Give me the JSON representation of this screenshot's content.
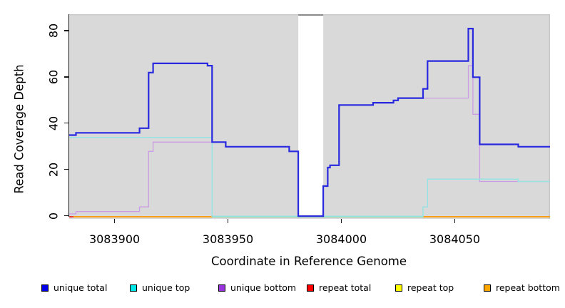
{
  "figure": {
    "ylabel": "Read Coverage Depth",
    "xlabel": "Coordinate in Reference Genome",
    "ytick_values": [
      0,
      20,
      40,
      60,
      80
    ],
    "ytick_labels": [
      "0",
      "20",
      "40",
      "60",
      "80"
    ],
    "xtick_values": [
      3083900,
      3083950,
      3084000,
      3084050
    ],
    "xtick_labels": [
      "3083900",
      "3083950",
      "3084000",
      "3084050"
    ]
  },
  "legend": {
    "items": [
      {
        "label": "unique total",
        "color": "#0000e8"
      },
      {
        "label": "unique top",
        "color": "#00e8e8"
      },
      {
        "label": "unique bottom",
        "color": "#9933dd"
      },
      {
        "label": "repeat total",
        "color": "#ff0000"
      },
      {
        "label": "repeat top",
        "color": "#ffff00"
      },
      {
        "label": "repeat bottom",
        "color": "#ffa500"
      }
    ]
  },
  "colors": {
    "panel_background": "#d9d9d9",
    "panel_border": "#c6c6c6",
    "gap_cap": "#8a8a8a",
    "axis": "#1a1a1a",
    "unique_total_line": "#2929e0",
    "unique_top_line": "#97e3e3",
    "unique_bottom_line": "#cb9ce4",
    "repeat_total_line": "#e03030",
    "repeat_top_line": "#f5e050",
    "repeat_bottom_line": "#ffa500",
    "zero_blend_line": "#8fd9a0"
  },
  "chart_data": {
    "type": "line",
    "subtype": "step",
    "title": "",
    "xlabel": "Coordinate in Reference Genome",
    "ylabel": "Read Coverage Depth",
    "xlim": [
      3083880,
      3084092
    ],
    "ylim": [
      0,
      87.2
    ],
    "grid": false,
    "legend_position": "bottom",
    "gap_region": {
      "from": 3083981,
      "to": 3083992
    },
    "series": [
      {
        "name": "unique total",
        "color": "#2929e0",
        "width": 2.2,
        "points": [
          [
            3083880,
            35
          ],
          [
            3083883,
            36
          ],
          [
            3083911,
            38
          ],
          [
            3083915,
            62
          ],
          [
            3083917,
            66
          ],
          [
            3083941,
            65
          ],
          [
            3083943,
            32
          ],
          [
            3083949,
            30
          ],
          [
            3083977,
            28
          ],
          [
            3083981,
            0
          ],
          [
            3083992,
            13
          ],
          [
            3083994,
            21
          ],
          [
            3083995,
            22
          ],
          [
            3083999,
            48
          ],
          [
            3084014,
            49
          ],
          [
            3084023,
            50
          ],
          [
            3084025,
            51
          ],
          [
            3084036,
            55
          ],
          [
            3084038,
            67
          ],
          [
            3084056,
            81
          ],
          [
            3084058,
            60
          ],
          [
            3084061,
            31
          ],
          [
            3084078,
            30
          ],
          [
            3084092,
            30
          ]
        ]
      },
      {
        "name": "unique top",
        "color": "#97e3e3",
        "width": 1.5,
        "points": [
          [
            3083880,
            34
          ],
          [
            3083943,
            0
          ],
          [
            3084036,
            4
          ],
          [
            3084038,
            16
          ],
          [
            3084078,
            15
          ],
          [
            3084092,
            15
          ]
        ]
      },
      {
        "name": "unique bottom",
        "color": "#cb9ce4",
        "width": 1.3,
        "points": [
          [
            3083880,
            1
          ],
          [
            3083883,
            2
          ],
          [
            3083911,
            4
          ],
          [
            3083915,
            28
          ],
          [
            3083917,
            32
          ],
          [
            3083949,
            30
          ],
          [
            3083977,
            28
          ],
          [
            3083981,
            0
          ],
          [
            3083992,
            13
          ],
          [
            3083994,
            21
          ],
          [
            3083995,
            22
          ],
          [
            3083999,
            48
          ],
          [
            3084014,
            49
          ],
          [
            3084023,
            50
          ],
          [
            3084025,
            51
          ],
          [
            3084056,
            65
          ],
          [
            3084058,
            44
          ],
          [
            3084061,
            15
          ],
          [
            3084092,
            15
          ]
        ]
      },
      {
        "name": "repeat total",
        "color": "#e03030",
        "width": 1.6,
        "points": [
          [
            3083880,
            0
          ],
          [
            3084092,
            0
          ]
        ]
      },
      {
        "name": "repeat top",
        "color": "#f5e050",
        "width": 1.6,
        "points": [
          [
            3083880,
            0
          ],
          [
            3084092,
            0
          ]
        ]
      },
      {
        "name": "repeat bottom",
        "color": "#ffa500",
        "width": 1.6,
        "points": [
          [
            3083880,
            0
          ],
          [
            3084092,
            0
          ]
        ]
      }
    ],
    "render_hints": {
      "zero_blend_segment": {
        "from": 3083943,
        "to": 3084036,
        "color": "#8fd9a0"
      },
      "red_start_segment": {
        "from": 3083880,
        "to": 3083881.2
      }
    }
  }
}
